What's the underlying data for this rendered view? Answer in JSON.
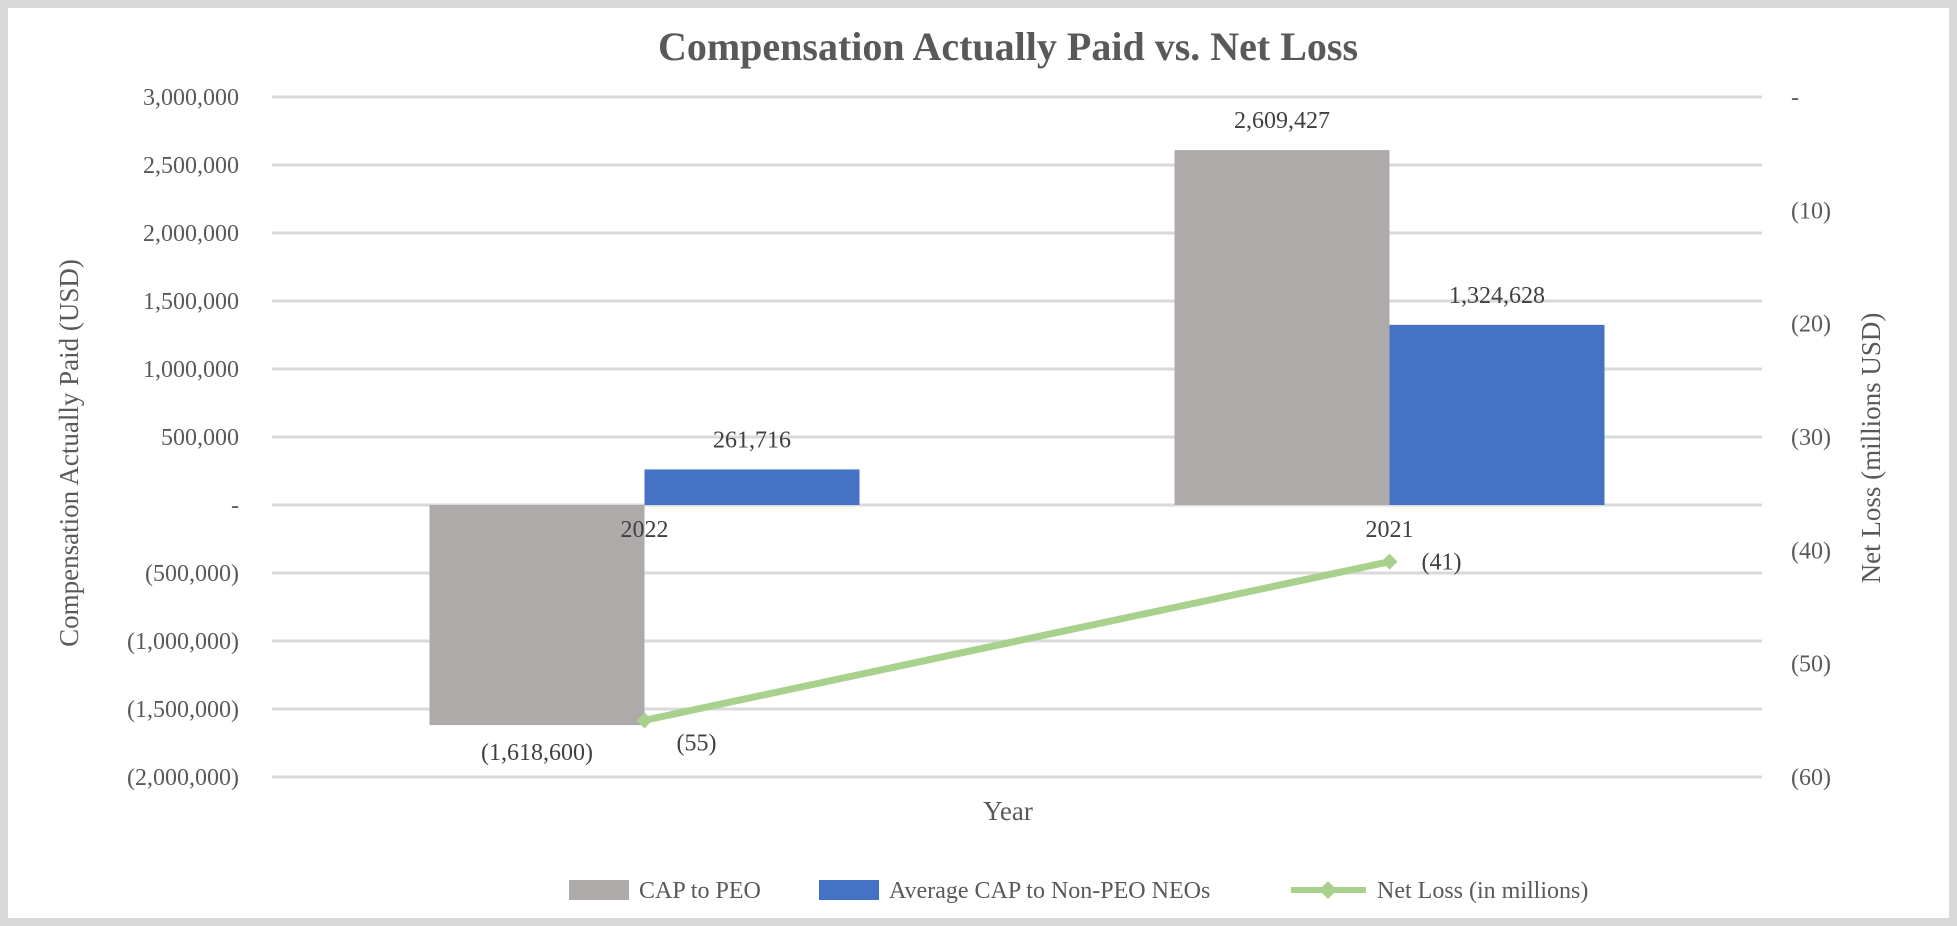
{
  "chart_data": {
    "type": "bar",
    "title": "Compensation Actually Paid vs. Net Loss",
    "xlabel": "Year",
    "ylabel": "Compensation Actually Paid (USD)",
    "y2label": "Net Loss (millions USD)",
    "categories": [
      "2022",
      "2021"
    ],
    "ylim": [
      -2000000,
      3000000
    ],
    "y2lim": [
      -60,
      0
    ],
    "y_ticks": [
      {
        "value": 3000000,
        "label": "3,000,000"
      },
      {
        "value": 2500000,
        "label": "2,500,000"
      },
      {
        "value": 2000000,
        "label": "2,000,000"
      },
      {
        "value": 1500000,
        "label": "1,500,000"
      },
      {
        "value": 1000000,
        "label": "1,000,000"
      },
      {
        "value": 500000,
        "label": "500,000"
      },
      {
        "value": 0,
        "label": "-"
      },
      {
        "value": -500000,
        "label": "(500,000)"
      },
      {
        "value": -1000000,
        "label": "(1,000,000)"
      },
      {
        "value": -1500000,
        "label": "(1,500,000)"
      },
      {
        "value": -2000000,
        "label": "(2,000,000)"
      }
    ],
    "y2_ticks": [
      {
        "value": 0,
        "label": "-"
      },
      {
        "value": -10,
        "label": "(10)"
      },
      {
        "value": -20,
        "label": "(20)"
      },
      {
        "value": -30,
        "label": "(30)"
      },
      {
        "value": -40,
        "label": "(40)"
      },
      {
        "value": -50,
        "label": "(50)"
      },
      {
        "value": -60,
        "label": "(60)"
      }
    ],
    "series": [
      {
        "name": "CAP to PEO",
        "kind": "bar",
        "color": "#aeaaaa",
        "values": [
          -1618600,
          2609427
        ],
        "labels": [
          "(1,618,600)",
          "2,609,427"
        ]
      },
      {
        "name": "Average CAP to Non-PEO NEOs",
        "kind": "bar",
        "color": "#4472c4",
        "values": [
          261716,
          1324628
        ],
        "labels": [
          "261,716",
          "1,324,628"
        ]
      },
      {
        "name": "Net Loss (in millions)",
        "kind": "line",
        "axis": "secondary",
        "color": "#a9d18e",
        "values": [
          -55,
          -41
        ],
        "labels": [
          "(55)",
          "(41)"
        ]
      }
    ],
    "grid": true,
    "legend": "bottom"
  }
}
